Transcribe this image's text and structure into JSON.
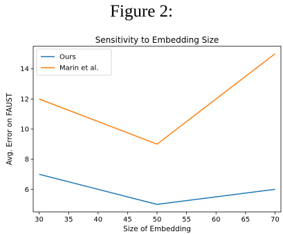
{
  "figure_caption": "Figure 2:",
  "chart_data": {
    "type": "line",
    "title": "Sensitivity to Embedding Size",
    "xlabel": "Size of Embedding",
    "ylabel": "Avg. Error on FAUST",
    "x": [
      30,
      50,
      70
    ],
    "xlim": [
      29,
      71
    ],
    "ylim": [
      4.5,
      15.5
    ],
    "xticks": [
      30,
      35,
      40,
      45,
      50,
      55,
      60,
      65,
      70
    ],
    "yticks": [
      6,
      8,
      10,
      12,
      14
    ],
    "legend_position": "top-left",
    "grid": false,
    "series": [
      {
        "name": "Ours",
        "color": "#1f77b4",
        "values": [
          7,
          5,
          6
        ]
      },
      {
        "name": "Marin et al.",
        "color": "#ff7f0e",
        "values": [
          12,
          9,
          15
        ]
      }
    ]
  }
}
